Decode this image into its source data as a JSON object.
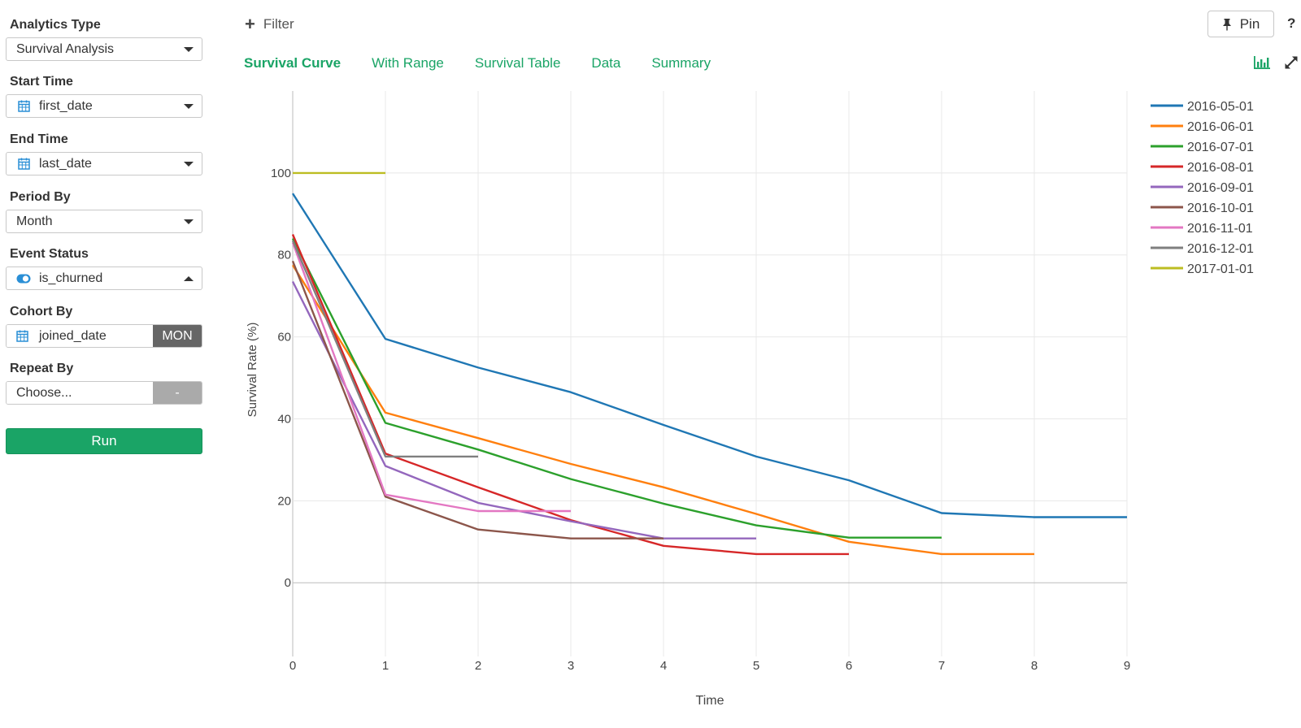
{
  "sidebar": {
    "analytics_type": {
      "label": "Analytics Type",
      "value": "Survival Analysis"
    },
    "start_time": {
      "label": "Start Time",
      "value": "first_date",
      "icon": "calendar-icon"
    },
    "end_time": {
      "label": "End Time",
      "value": "last_date",
      "icon": "calendar-icon"
    },
    "period_by": {
      "label": "Period By",
      "value": "Month"
    },
    "event_status": {
      "label": "Event Status",
      "value": "is_churned",
      "icon": "toggle-icon"
    },
    "cohort_by": {
      "label": "Cohort By",
      "value": "joined_date",
      "icon": "calendar-icon",
      "unit": "MON"
    },
    "repeat_by": {
      "label": "Repeat By",
      "value": "Choose...",
      "unit": "-"
    },
    "run_label": "Run"
  },
  "toolbar": {
    "filter_label": "Filter",
    "pin_label": "Pin",
    "help_label": "?"
  },
  "tabs": [
    {
      "label": "Survival Curve",
      "active": true
    },
    {
      "label": "With Range",
      "active": false
    },
    {
      "label": "Survival Table",
      "active": false
    },
    {
      "label": "Data",
      "active": false
    },
    {
      "label": "Summary",
      "active": false
    }
  ],
  "colors": {
    "accent": "#1aa466"
  },
  "chart_data": {
    "type": "line",
    "xlabel": "Time",
    "ylabel": "Survival Rate (%)",
    "xlim": [
      0,
      9
    ],
    "ylim": [
      -18,
      120
    ],
    "x_ticks": [
      0,
      1,
      2,
      3,
      4,
      5,
      6,
      7,
      8,
      9
    ],
    "y_ticks": [
      0,
      20,
      40,
      60,
      80,
      100
    ],
    "grid": true,
    "legend_position": "right",
    "series": [
      {
        "name": "2016-05-01",
        "color": "#1f77b4",
        "x": [
          0,
          1,
          2,
          3,
          4,
          5,
          6,
          7,
          8,
          9
        ],
        "y": [
          95,
          59.5,
          52.5,
          46.5,
          38.5,
          30.8,
          25,
          17,
          16,
          16
        ]
      },
      {
        "name": "2016-06-01",
        "color": "#ff7f0e",
        "x": [
          0,
          1,
          2,
          3,
          4,
          5,
          6,
          7,
          8
        ],
        "y": [
          77.5,
          41.5,
          35.3,
          29,
          23.3,
          16.8,
          10,
          7,
          7
        ]
      },
      {
        "name": "2016-07-01",
        "color": "#2ca02c",
        "x": [
          0,
          1,
          2,
          3,
          4,
          5,
          6,
          7
        ],
        "y": [
          84,
          39,
          32.5,
          25.3,
          19.3,
          14,
          11,
          11
        ]
      },
      {
        "name": "2016-08-01",
        "color": "#d62728",
        "x": [
          0,
          1,
          2,
          3,
          4,
          5,
          6
        ],
        "y": [
          85,
          31.5,
          23.3,
          15.3,
          9,
          7,
          7
        ]
      },
      {
        "name": "2016-09-01",
        "color": "#9467bd",
        "x": [
          0,
          1,
          2,
          3,
          4,
          5
        ],
        "y": [
          73.5,
          28.5,
          19.5,
          15,
          10.8,
          10.8
        ]
      },
      {
        "name": "2016-10-01",
        "color": "#8c564b",
        "x": [
          0,
          1,
          2,
          3,
          4
        ],
        "y": [
          78.5,
          21,
          13,
          10.8,
          10.8
        ]
      },
      {
        "name": "2016-11-01",
        "color": "#e377c2",
        "x": [
          0,
          1,
          2,
          3
        ],
        "y": [
          83,
          21.5,
          17.5,
          17.5
        ]
      },
      {
        "name": "2016-12-01",
        "color": "#7f7f7f",
        "x": [
          0,
          1,
          2
        ],
        "y": [
          83.5,
          30.8,
          30.8
        ]
      },
      {
        "name": "2017-01-01",
        "color": "#bcbd22",
        "x": [
          0,
          1
        ],
        "y": [
          100,
          100
        ]
      }
    ]
  }
}
